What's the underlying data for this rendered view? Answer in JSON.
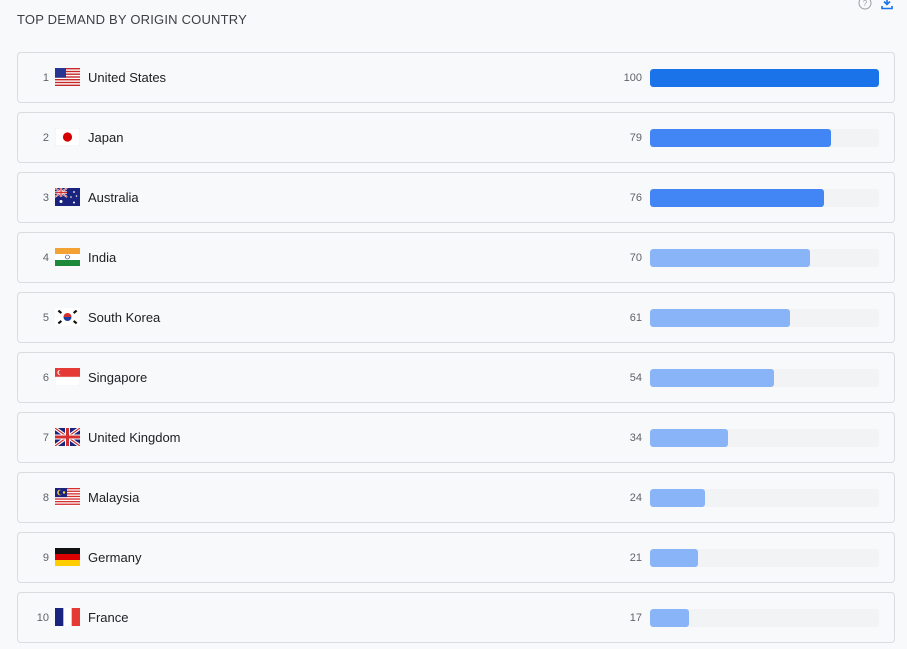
{
  "header": {
    "title": "TOP DEMAND BY ORIGIN COUNTRY"
  },
  "icons": {
    "help": "help-circle-icon",
    "download": "download-icon"
  },
  "colors": {
    "bar_strong": "#1a73e8",
    "bar_mid": "#4285f4",
    "bar_light": "#8ab4f8",
    "bar_lighter": "#a8c7fa",
    "track": "#f1f3f4"
  },
  "rows": [
    {
      "rank": "1",
      "country": "United States",
      "value": "100",
      "flag": "us-flag-icon"
    },
    {
      "rank": "2",
      "country": "Japan",
      "value": "79",
      "flag": "jp-flag-icon"
    },
    {
      "rank": "3",
      "country": "Australia",
      "value": "76",
      "flag": "au-flag-icon"
    },
    {
      "rank": "4",
      "country": "India",
      "value": "70",
      "flag": "in-flag-icon"
    },
    {
      "rank": "5",
      "country": "South Korea",
      "value": "61",
      "flag": "kr-flag-icon"
    },
    {
      "rank": "6",
      "country": "Singapore",
      "value": "54",
      "flag": "sg-flag-icon"
    },
    {
      "rank": "7",
      "country": "United Kingdom",
      "value": "34",
      "flag": "gb-flag-icon"
    },
    {
      "rank": "8",
      "country": "Malaysia",
      "value": "24",
      "flag": "my-flag-icon"
    },
    {
      "rank": "9",
      "country": "Germany",
      "value": "21",
      "flag": "de-flag-icon"
    },
    {
      "rank": "10",
      "country": "France",
      "value": "17",
      "flag": "fr-flag-icon"
    }
  ]
}
